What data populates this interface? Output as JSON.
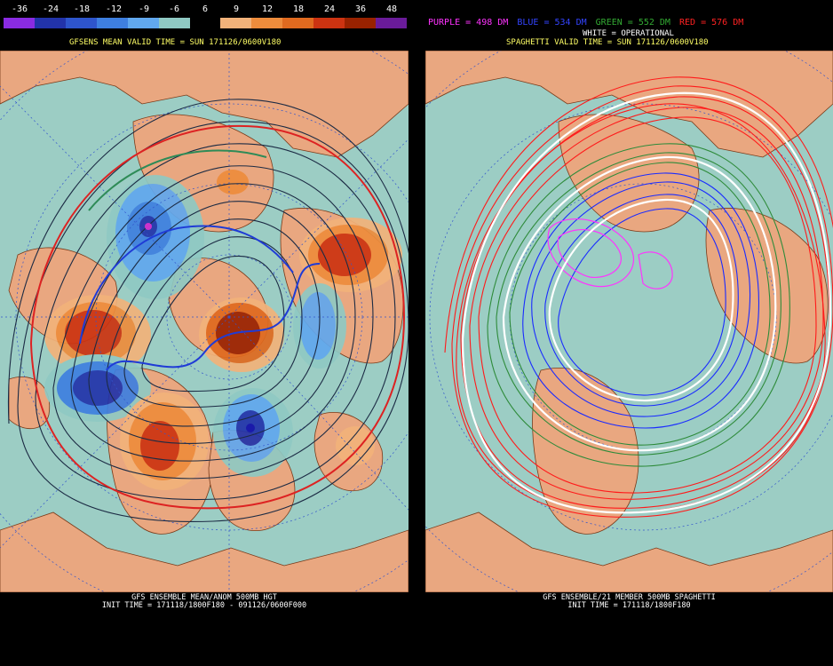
{
  "scale": {
    "labels": [
      "-36",
      "-24",
      "-18",
      "-12",
      "-9",
      "-6",
      "6",
      "9",
      "12",
      "18",
      "24",
      "36",
      "48"
    ],
    "colors": [
      "#8a2be2",
      "#2233aa",
      "#2e55cc",
      "#3e7fe0",
      "#61a8ee",
      "#8fc9c3",
      "#000000",
      "#f2b27a",
      "#ee8c3c",
      "#e06a1f",
      "#cc3311",
      "#992200",
      "#6a1b9a"
    ]
  },
  "left": {
    "title": "GFSENS MEAN VALID TIME = SUN 171126/0600V180",
    "footer_line1": "GFS ENSEMBLE MEAN/ANOM 500MB HGT",
    "footer_line2": "INIT TIME = 171118/1800F180 - 091126/0600F000"
  },
  "right": {
    "legend": [
      {
        "text": "PURPLE = 498 DM",
        "color": "#ff33ff"
      },
      {
        "text": "BLUE = 534 DM",
        "color": "#3344ff"
      },
      {
        "text": "GREEN = 552 DM",
        "color": "#33aa33"
      },
      {
        "text": "RED = 576 DM",
        "color": "#ff2222"
      }
    ],
    "white_label": "WHITE = OPERATIONAL",
    "title": "SPAGHETTI VALID TIME = SUN 171126/0600V180",
    "footer_line1": "GFS ENSEMBLE/21 MEMBER 500MB SPAGHETTI",
    "footer_line2": "INIT TIME = 171118/1800F180"
  },
  "colors": {
    "ocean": "#9ccdc4",
    "land": "#e9a780",
    "grid": "#3355cc"
  }
}
